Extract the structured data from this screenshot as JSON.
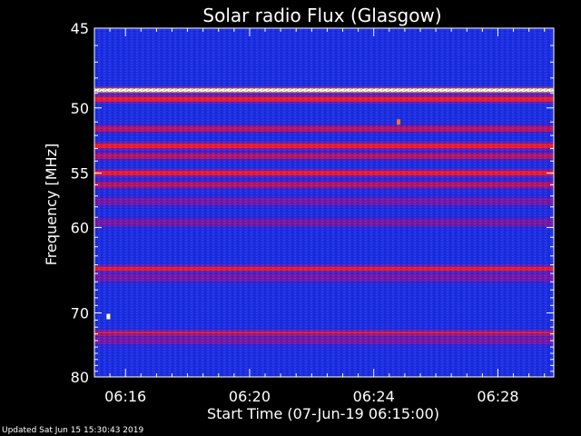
{
  "chart_data": {
    "type": "heatmap",
    "title": "Solar radio Flux (Glasgow)",
    "xlabel": "Start Time (07-Jun-19 06:15:00)",
    "ylabel": "Frequency [MHz]",
    "x_ticks": [
      "06:16",
      "06:20",
      "06:24",
      "06:28"
    ],
    "x_tick_minutes": [
      1,
      5,
      9,
      13
    ],
    "xlim_minutes": [
      0,
      14.8
    ],
    "y_ticks": [
      45,
      50,
      55,
      60,
      70,
      80
    ],
    "ylim": [
      45,
      80
    ],
    "y_scale": "reciprocal",
    "colormap": [
      "#0000ff",
      "#ff0000",
      "#ffff99"
    ],
    "background_color": "#1a2fe0",
    "bands": [
      {
        "freq": 48.8,
        "intensity": "saturated"
      },
      {
        "freq": 49.4,
        "intensity": "high"
      },
      {
        "freq": 51.5,
        "intensity": "medium"
      },
      {
        "freq": 52.8,
        "intensity": "high"
      },
      {
        "freq": 53.6,
        "intensity": "medium"
      },
      {
        "freq": 55.0,
        "intensity": "high"
      },
      {
        "freq": 56.0,
        "intensity": "medium"
      },
      {
        "freq": 57.5,
        "intensity": "low"
      },
      {
        "freq": 59.5,
        "intensity": "low"
      },
      {
        "freq": 64.5,
        "intensity": "high"
      },
      {
        "freq": 65.5,
        "intensity": "low"
      },
      {
        "freq": 73.0,
        "intensity": "high"
      },
      {
        "freq": 74.0,
        "intensity": "low"
      }
    ],
    "bursts": [
      {
        "minute": 0.45,
        "freq": 70.5,
        "intensity": "saturated"
      },
      {
        "minute": 9.8,
        "freq": 51.0,
        "intensity": "high"
      }
    ]
  },
  "footer": {
    "updated": "Updated Sat Jun 15 15:30:43 2019"
  }
}
